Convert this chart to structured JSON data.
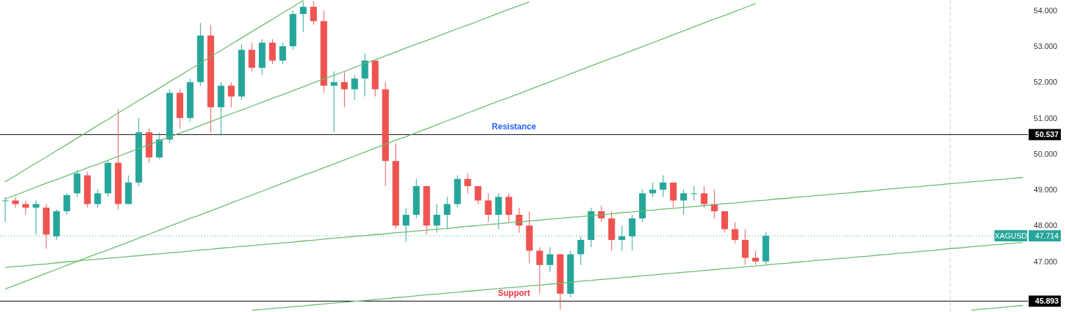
{
  "chart_data": {
    "type": "candlestick",
    "categories": [
      null,
      null,
      null,
      null,
      null,
      null,
      null,
      null,
      null,
      null,
      null,
      null,
      null,
      null,
      null,
      null,
      null,
      null,
      null,
      null,
      null,
      null,
      null,
      null,
      null,
      null,
      null,
      null,
      null,
      null,
      null,
      null,
      null,
      null,
      null,
      null,
      null,
      null,
      null,
      null,
      null,
      null,
      null,
      null,
      null,
      null,
      null,
      null,
      null,
      null,
      null,
      null,
      null,
      null,
      null,
      null,
      null,
      null,
      null,
      null,
      null,
      null,
      null,
      null,
      null,
      null,
      null,
      null,
      null,
      null,
      null,
      null,
      null,
      null,
      null,
      null,
      null,
      null,
      null,
      null,
      null,
      null,
      null,
      null,
      null,
      null,
      null,
      null,
      null,
      null,
      null,
      null,
      null,
      null,
      null,
      null,
      null,
      null,
      null,
      null
    ],
    "ohlc": [
      [
        48.7,
        48.8,
        48.1,
        48.7
      ],
      [
        48.7,
        48.8,
        48.5,
        48.6
      ],
      [
        48.6,
        48.7,
        48.3,
        48.5
      ],
      [
        48.5,
        48.7,
        47.75,
        48.6
      ],
      [
        48.5,
        48.6,
        47.35,
        47.75
      ],
      [
        47.7,
        48.45,
        47.6,
        48.4
      ],
      [
        48.4,
        48.9,
        48.3,
        48.85
      ],
      [
        48.9,
        49.55,
        48.8,
        49.45
      ],
      [
        49.4,
        49.5,
        48.5,
        48.6
      ],
      [
        48.6,
        49.0,
        48.5,
        48.9
      ],
      [
        48.9,
        49.8,
        48.8,
        49.75
      ],
      [
        49.75,
        51.25,
        48.45,
        48.6
      ],
      [
        48.6,
        49.4,
        48.6,
        49.2
      ],
      [
        49.2,
        51.0,
        49.1,
        50.6
      ],
      [
        50.6,
        50.7,
        49.75,
        49.9
      ],
      [
        49.9,
        50.6,
        49.85,
        50.4
      ],
      [
        50.4,
        51.8,
        50.3,
        51.7
      ],
      [
        51.7,
        51.8,
        50.7,
        51.0
      ],
      [
        51.0,
        52.1,
        50.9,
        52.0
      ],
      [
        52.0,
        53.65,
        51.9,
        53.3
      ],
      [
        53.3,
        53.6,
        50.6,
        51.3
      ],
      [
        51.3,
        52.0,
        50.5,
        51.9
      ],
      [
        51.9,
        52.0,
        51.3,
        51.6
      ],
      [
        51.6,
        53.05,
        51.5,
        52.9
      ],
      [
        52.9,
        53.1,
        52.3,
        52.4
      ],
      [
        52.4,
        53.2,
        52.2,
        53.1
      ],
      [
        53.1,
        53.2,
        52.5,
        52.6
      ],
      [
        52.6,
        53.1,
        52.5,
        53.0
      ],
      [
        53.0,
        54.0,
        52.9,
        53.9
      ],
      [
        53.9,
        54.25,
        53.4,
        54.1
      ],
      [
        54.1,
        54.25,
        53.6,
        53.7
      ],
      [
        53.7,
        54.0,
        51.7,
        51.9
      ],
      [
        51.9,
        52.3,
        50.6,
        52.0
      ],
      [
        52.0,
        52.3,
        51.3,
        51.8
      ],
      [
        51.8,
        52.2,
        51.5,
        52.1
      ],
      [
        52.1,
        52.8,
        51.6,
        52.6
      ],
      [
        52.6,
        52.6,
        51.6,
        51.8
      ],
      [
        51.8,
        52.0,
        49.1,
        49.8
      ],
      [
        49.8,
        50.3,
        47.9,
        48.0
      ],
      [
        48.0,
        48.5,
        47.55,
        48.3
      ],
      [
        48.3,
        49.3,
        48.2,
        49.1
      ],
      [
        49.1,
        49.1,
        47.75,
        48.0
      ],
      [
        48.0,
        48.6,
        47.8,
        48.3
      ],
      [
        48.3,
        48.8,
        47.9,
        48.6
      ],
      [
        48.6,
        49.4,
        48.5,
        49.3
      ],
      [
        49.3,
        49.45,
        48.9,
        49.1
      ],
      [
        49.1,
        49.1,
        48.6,
        48.7
      ],
      [
        48.7,
        48.9,
        48.1,
        48.3
      ],
      [
        48.3,
        48.9,
        47.9,
        48.8
      ],
      [
        48.8,
        48.9,
        48.1,
        48.3
      ],
      [
        48.3,
        48.5,
        47.8,
        48.0
      ],
      [
        48.0,
        48.4,
        46.95,
        47.3
      ],
      [
        47.3,
        47.4,
        46.1,
        46.9
      ],
      [
        46.9,
        47.4,
        46.7,
        47.2
      ],
      [
        47.2,
        47.2,
        45.65,
        46.1
      ],
      [
        46.1,
        47.3,
        46.0,
        47.2
      ],
      [
        47.2,
        47.7,
        46.9,
        47.6
      ],
      [
        47.6,
        48.5,
        47.4,
        48.4
      ],
      [
        48.4,
        48.55,
        48.1,
        48.2
      ],
      [
        48.2,
        48.4,
        47.3,
        47.6
      ],
      [
        47.6,
        48.0,
        47.3,
        47.7
      ],
      [
        47.7,
        48.3,
        47.3,
        48.2
      ],
      [
        48.2,
        49.0,
        48.1,
        48.9
      ],
      [
        48.9,
        49.2,
        48.8,
        49.0
      ],
      [
        49.0,
        49.4,
        48.8,
        49.2
      ],
      [
        49.2,
        49.2,
        48.5,
        48.7
      ],
      [
        48.7,
        49.0,
        48.3,
        48.9
      ],
      [
        48.9,
        49.1,
        48.7,
        48.9
      ],
      [
        48.9,
        49.1,
        48.5,
        48.6
      ],
      [
        48.6,
        49.0,
        48.2,
        48.4
      ],
      [
        48.4,
        48.4,
        47.8,
        47.9
      ],
      [
        47.9,
        48.1,
        47.5,
        47.6
      ],
      [
        47.6,
        47.9,
        46.9,
        47.1
      ],
      [
        47.1,
        47.3,
        46.9,
        47.0
      ],
      [
        47.0,
        47.83,
        46.9,
        47.714
      ],
      null,
      null,
      null,
      null,
      null,
      null,
      null,
      null,
      null,
      null,
      null,
      null,
      null,
      null,
      null,
      null,
      null,
      null,
      null,
      null,
      null,
      null,
      null,
      null,
      null
    ],
    "series": [
      {
        "type": "line",
        "color": "#66bb6a",
        "values": [
          49.22,
          49.39,
          49.57,
          49.74,
          49.91,
          50.09,
          50.26,
          50.44,
          50.61,
          50.79,
          50.96,
          51.14,
          51.31,
          51.49,
          51.66,
          51.83,
          52.01,
          52.18,
          52.36,
          52.53,
          52.71,
          52.88,
          53.06,
          53.23,
          53.41,
          53.58,
          53.75,
          53.93,
          54.1,
          54.28,
          null,
          null,
          null,
          null,
          null,
          null,
          null,
          null,
          null,
          null,
          null,
          null,
          null,
          null,
          null,
          null,
          null,
          null,
          null,
          null,
          null,
          null,
          null,
          null,
          null,
          null,
          null,
          null,
          null,
          null,
          null,
          null,
          null,
          null,
          null,
          null,
          null,
          null,
          null,
          null,
          null,
          null,
          null,
          null,
          null,
          null,
          null,
          null,
          null,
          null,
          null,
          null,
          null,
          null,
          null,
          null,
          null,
          null,
          null,
          null,
          null,
          null,
          null,
          null,
          null,
          null,
          null,
          null,
          null,
          null
        ]
      },
      {
        "type": "line",
        "color": "#66bb6a",
        "values": [
          48.74,
          48.85,
          48.96,
          49.07,
          49.18,
          49.28,
          49.39,
          49.5,
          49.61,
          49.71,
          49.82,
          49.93,
          50.04,
          50.15,
          50.25,
          50.36,
          50.47,
          50.58,
          50.68,
          50.79,
          50.9,
          51.01,
          51.12,
          51.22,
          51.33,
          51.44,
          51.55,
          51.65,
          51.76,
          51.87,
          51.98,
          52.09,
          52.19,
          52.3,
          52.41,
          52.52,
          52.62,
          52.73,
          52.84,
          52.95,
          53.06,
          53.16,
          53.27,
          53.38,
          53.49,
          53.59,
          53.7,
          53.81,
          53.92,
          54.03,
          54.13,
          54.24,
          null,
          null,
          null,
          null,
          null,
          null,
          null,
          null,
          null,
          null,
          null,
          null,
          null,
          null,
          null,
          null,
          null,
          null,
          null,
          null,
          null,
          null,
          null,
          null,
          null,
          null,
          null,
          null,
          null,
          null,
          null,
          null,
          null,
          null,
          null,
          null,
          null,
          null,
          null,
          null,
          null,
          null,
          null,
          null,
          null,
          null,
          null,
          null
        ]
      },
      {
        "type": "line",
        "color": "#66bb6a",
        "values": [
          46.23,
          46.34,
          46.45,
          46.56,
          46.67,
          46.78,
          46.89,
          47.0,
          47.11,
          47.22,
          47.32,
          47.43,
          47.54,
          47.65,
          47.76,
          47.87,
          47.98,
          48.09,
          48.2,
          48.3,
          48.41,
          48.52,
          48.63,
          48.74,
          48.85,
          48.96,
          49.07,
          49.18,
          49.29,
          49.4,
          49.5,
          49.61,
          49.72,
          49.83,
          49.94,
          50.05,
          50.16,
          50.27,
          50.38,
          50.48,
          50.59,
          50.7,
          50.81,
          50.92,
          51.03,
          51.14,
          51.25,
          51.36,
          51.47,
          51.57,
          51.68,
          51.79,
          51.9,
          52.01,
          52.12,
          52.23,
          52.34,
          52.45,
          52.56,
          52.67,
          52.77,
          52.88,
          52.99,
          53.1,
          53.21,
          53.32,
          53.43,
          53.54,
          53.65,
          53.76,
          53.86,
          53.97,
          54.08,
          54.19,
          null,
          null,
          null,
          null,
          null,
          null,
          null,
          null,
          null,
          null,
          null,
          null,
          null,
          null,
          null,
          null,
          null,
          null,
          null,
          null,
          null,
          null,
          null,
          null,
          null,
          null
        ]
      },
      {
        "type": "line",
        "color": "#66bb6a",
        "values": [
          46.83,
          46.86,
          46.88,
          46.91,
          46.93,
          46.96,
          46.99,
          47.01,
          47.04,
          47.06,
          47.09,
          47.11,
          47.14,
          47.16,
          47.19,
          47.21,
          47.24,
          47.26,
          47.29,
          47.32,
          47.34,
          47.37,
          47.39,
          47.42,
          47.44,
          47.47,
          47.49,
          47.52,
          47.54,
          47.57,
          47.59,
          47.62,
          47.65,
          47.67,
          47.7,
          47.72,
          47.75,
          47.77,
          47.8,
          47.82,
          47.85,
          47.87,
          47.9,
          47.92,
          47.95,
          47.98,
          48.0,
          48.03,
          48.05,
          48.08,
          48.1,
          48.13,
          48.15,
          48.18,
          48.2,
          48.23,
          48.25,
          48.28,
          48.3,
          48.33,
          48.36,
          48.38,
          48.41,
          48.43,
          48.46,
          48.48,
          48.51,
          48.53,
          48.56,
          48.58,
          48.61,
          48.63,
          48.66,
          48.69,
          48.71,
          48.74,
          48.76,
          48.79,
          48.81,
          48.84,
          48.86,
          48.89,
          48.91,
          48.94,
          48.96,
          48.99,
          49.02,
          49.04,
          49.07,
          49.09,
          49.12,
          49.14,
          49.17,
          49.19,
          49.22,
          49.24,
          49.27,
          49.29,
          49.32,
          49.34
        ]
      },
      {
        "type": "line",
        "color": "#66bb6a",
        "values": [
          null,
          null,
          null,
          null,
          null,
          null,
          null,
          null,
          null,
          null,
          null,
          null,
          null,
          null,
          null,
          null,
          null,
          null,
          null,
          null,
          null,
          null,
          null,
          null,
          45.64,
          45.66,
          45.69,
          45.71,
          45.74,
          45.76,
          45.79,
          45.81,
          45.84,
          45.86,
          45.89,
          45.91,
          45.94,
          45.96,
          45.99,
          46.01,
          46.04,
          46.07,
          46.09,
          46.12,
          46.14,
          46.17,
          46.19,
          46.22,
          46.24,
          46.27,
          46.29,
          46.32,
          46.34,
          46.37,
          46.39,
          46.42,
          46.45,
          46.47,
          46.5,
          46.52,
          46.55,
          46.57,
          46.6,
          46.62,
          46.65,
          46.67,
          46.7,
          46.72,
          46.75,
          46.77,
          46.8,
          46.82,
          46.85,
          46.87,
          46.9,
          46.93,
          46.95,
          46.98,
          47.0,
          47.03,
          47.05,
          47.08,
          47.1,
          47.13,
          47.15,
          47.18,
          47.2,
          47.23,
          47.25,
          47.28,
          47.3,
          47.33,
          47.36,
          47.38,
          47.41,
          47.43,
          47.46,
          47.48,
          47.51,
          47.53
        ]
      },
      {
        "type": "line",
        "color": "#66bb6a",
        "values": [
          null,
          null,
          null,
          null,
          null,
          null,
          null,
          null,
          null,
          null,
          null,
          null,
          null,
          null,
          null,
          null,
          null,
          null,
          null,
          null,
          null,
          null,
          null,
          null,
          null,
          null,
          null,
          null,
          null,
          null,
          null,
          null,
          null,
          null,
          null,
          null,
          null,
          null,
          null,
          null,
          null,
          null,
          null,
          null,
          null,
          null,
          null,
          null,
          null,
          null,
          null,
          null,
          null,
          null,
          null,
          null,
          null,
          null,
          null,
          null,
          null,
          null,
          null,
          null,
          null,
          null,
          null,
          null,
          null,
          null,
          null,
          null,
          null,
          null,
          null,
          null,
          null,
          null,
          null,
          null,
          null,
          null,
          null,
          null,
          null,
          null,
          null,
          null,
          null,
          null,
          null,
          null,
          null,
          null,
          45.64,
          45.67,
          45.69,
          45.72,
          45.75,
          45.77
        ]
      }
    ],
    "ylim": [
      45.59,
      54.29
    ],
    "yticks": [
      45.893,
      {
        "value": 47,
        "label": "47.000"
      },
      47.714,
      {
        "value": 48,
        "label": "48.000"
      },
      {
        "value": 49,
        "label": "49.000"
      },
      {
        "value": 50,
        "label": "50.000"
      },
      50.537,
      {
        "value": 51,
        "label": "51.000"
      },
      {
        "value": 52,
        "label": "52.000"
      },
      {
        "value": 53,
        "label": "53.000"
      },
      {
        "value": 54,
        "label": "54.000"
      }
    ],
    "ref_lines": [
      {
        "axis": "y",
        "value": 50.537,
        "label": "Resistance",
        "color": "#000000",
        "line_style": "solid"
      },
      {
        "axis": "y",
        "value": 45.893,
        "label": "Support",
        "color": "#000000",
        "line_style": "solid"
      },
      {
        "axis": "y",
        "value": 47.714,
        "label": "XAGUSD",
        "color": "#26a69a",
        "line_style": "dotted"
      }
    ],
    "tick_labels": "y"
  }
}
